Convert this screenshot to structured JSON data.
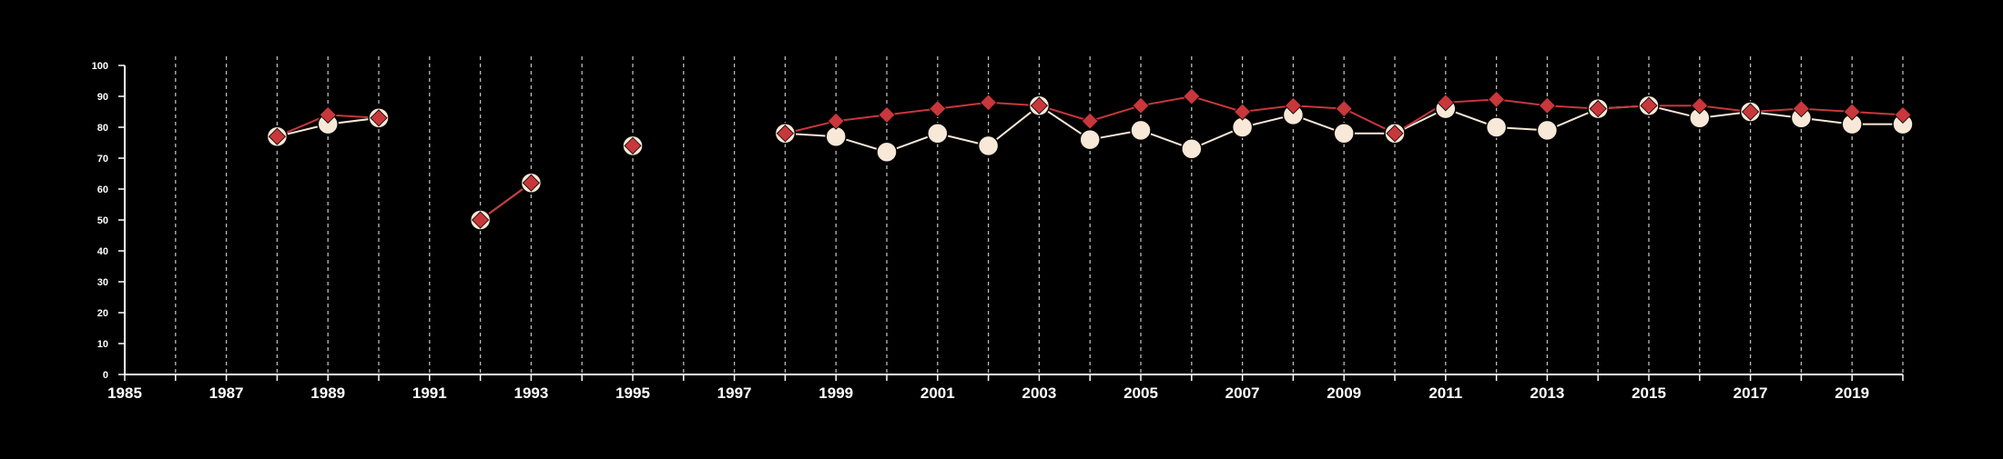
{
  "chart_data": {
    "type": "line",
    "title": "",
    "xlabel": "",
    "ylabel": "",
    "xlim": [
      1985,
      2020
    ],
    "ylim": [
      0,
      100
    ],
    "yticks": [
      0,
      10,
      20,
      30,
      40,
      50,
      60,
      70,
      80,
      90,
      100
    ],
    "xticks": [
      1985,
      1987,
      1989,
      1991,
      1993,
      1995,
      1997,
      1999,
      2001,
      2003,
      2005,
      2007,
      2009,
      2011,
      2013,
      2015,
      2017,
      2019
    ],
    "grid": "vertical dashed, yearly",
    "series": [
      {
        "marker": "diamond",
        "color": "#c8373b",
        "points": [
          [
            1988,
            77
          ],
          [
            1989,
            84
          ],
          [
            1990,
            83
          ],
          null,
          [
            1992,
            50
          ],
          [
            1993,
            62
          ],
          null,
          [
            1995,
            74
          ],
          null,
          [
            1998,
            78
          ],
          [
            1999,
            82
          ],
          [
            2000,
            84
          ],
          [
            2001,
            86
          ],
          [
            2002,
            88
          ],
          [
            2003,
            87
          ],
          [
            2004,
            82
          ],
          [
            2005,
            87
          ],
          [
            2006,
            90
          ],
          [
            2007,
            85
          ],
          [
            2008,
            87
          ],
          [
            2009,
            86
          ],
          [
            2010,
            78
          ],
          [
            2011,
            88
          ],
          [
            2012,
            89
          ],
          [
            2013,
            87
          ],
          [
            2014,
            86
          ],
          [
            2015,
            87
          ],
          [
            2016,
            87
          ],
          [
            2017,
            85
          ],
          [
            2018,
            86
          ],
          [
            2019,
            85
          ],
          [
            2020,
            84
          ]
        ]
      },
      {
        "marker": "circle",
        "color": "#f7e8d8",
        "points": [
          [
            1988,
            77
          ],
          [
            1989,
            81
          ],
          [
            1990,
            83
          ],
          null,
          [
            1992,
            50
          ],
          [
            1993,
            62
          ],
          null,
          [
            1995,
            74
          ],
          null,
          [
            1998,
            78
          ],
          [
            1999,
            77
          ],
          [
            2000,
            72
          ],
          [
            2001,
            78
          ],
          [
            2002,
            74
          ],
          [
            2003,
            87
          ],
          [
            2004,
            76
          ],
          [
            2005,
            79
          ],
          [
            2006,
            73
          ],
          [
            2007,
            80
          ],
          [
            2008,
            84
          ],
          [
            2009,
            78
          ],
          [
            2010,
            78
          ],
          [
            2011,
            86
          ],
          [
            2012,
            80
          ],
          [
            2013,
            79
          ],
          [
            2014,
            86
          ],
          [
            2015,
            87
          ],
          [
            2016,
            83
          ],
          [
            2017,
            85
          ],
          [
            2018,
            83
          ],
          [
            2019,
            81
          ],
          [
            2020,
            81
          ]
        ]
      }
    ]
  },
  "colors": {
    "background": "#000000",
    "axis": "#ffffff",
    "grid": "#bbbbbb",
    "diamond_series": "#c8373b",
    "circle_series": "#f7e8d8"
  }
}
